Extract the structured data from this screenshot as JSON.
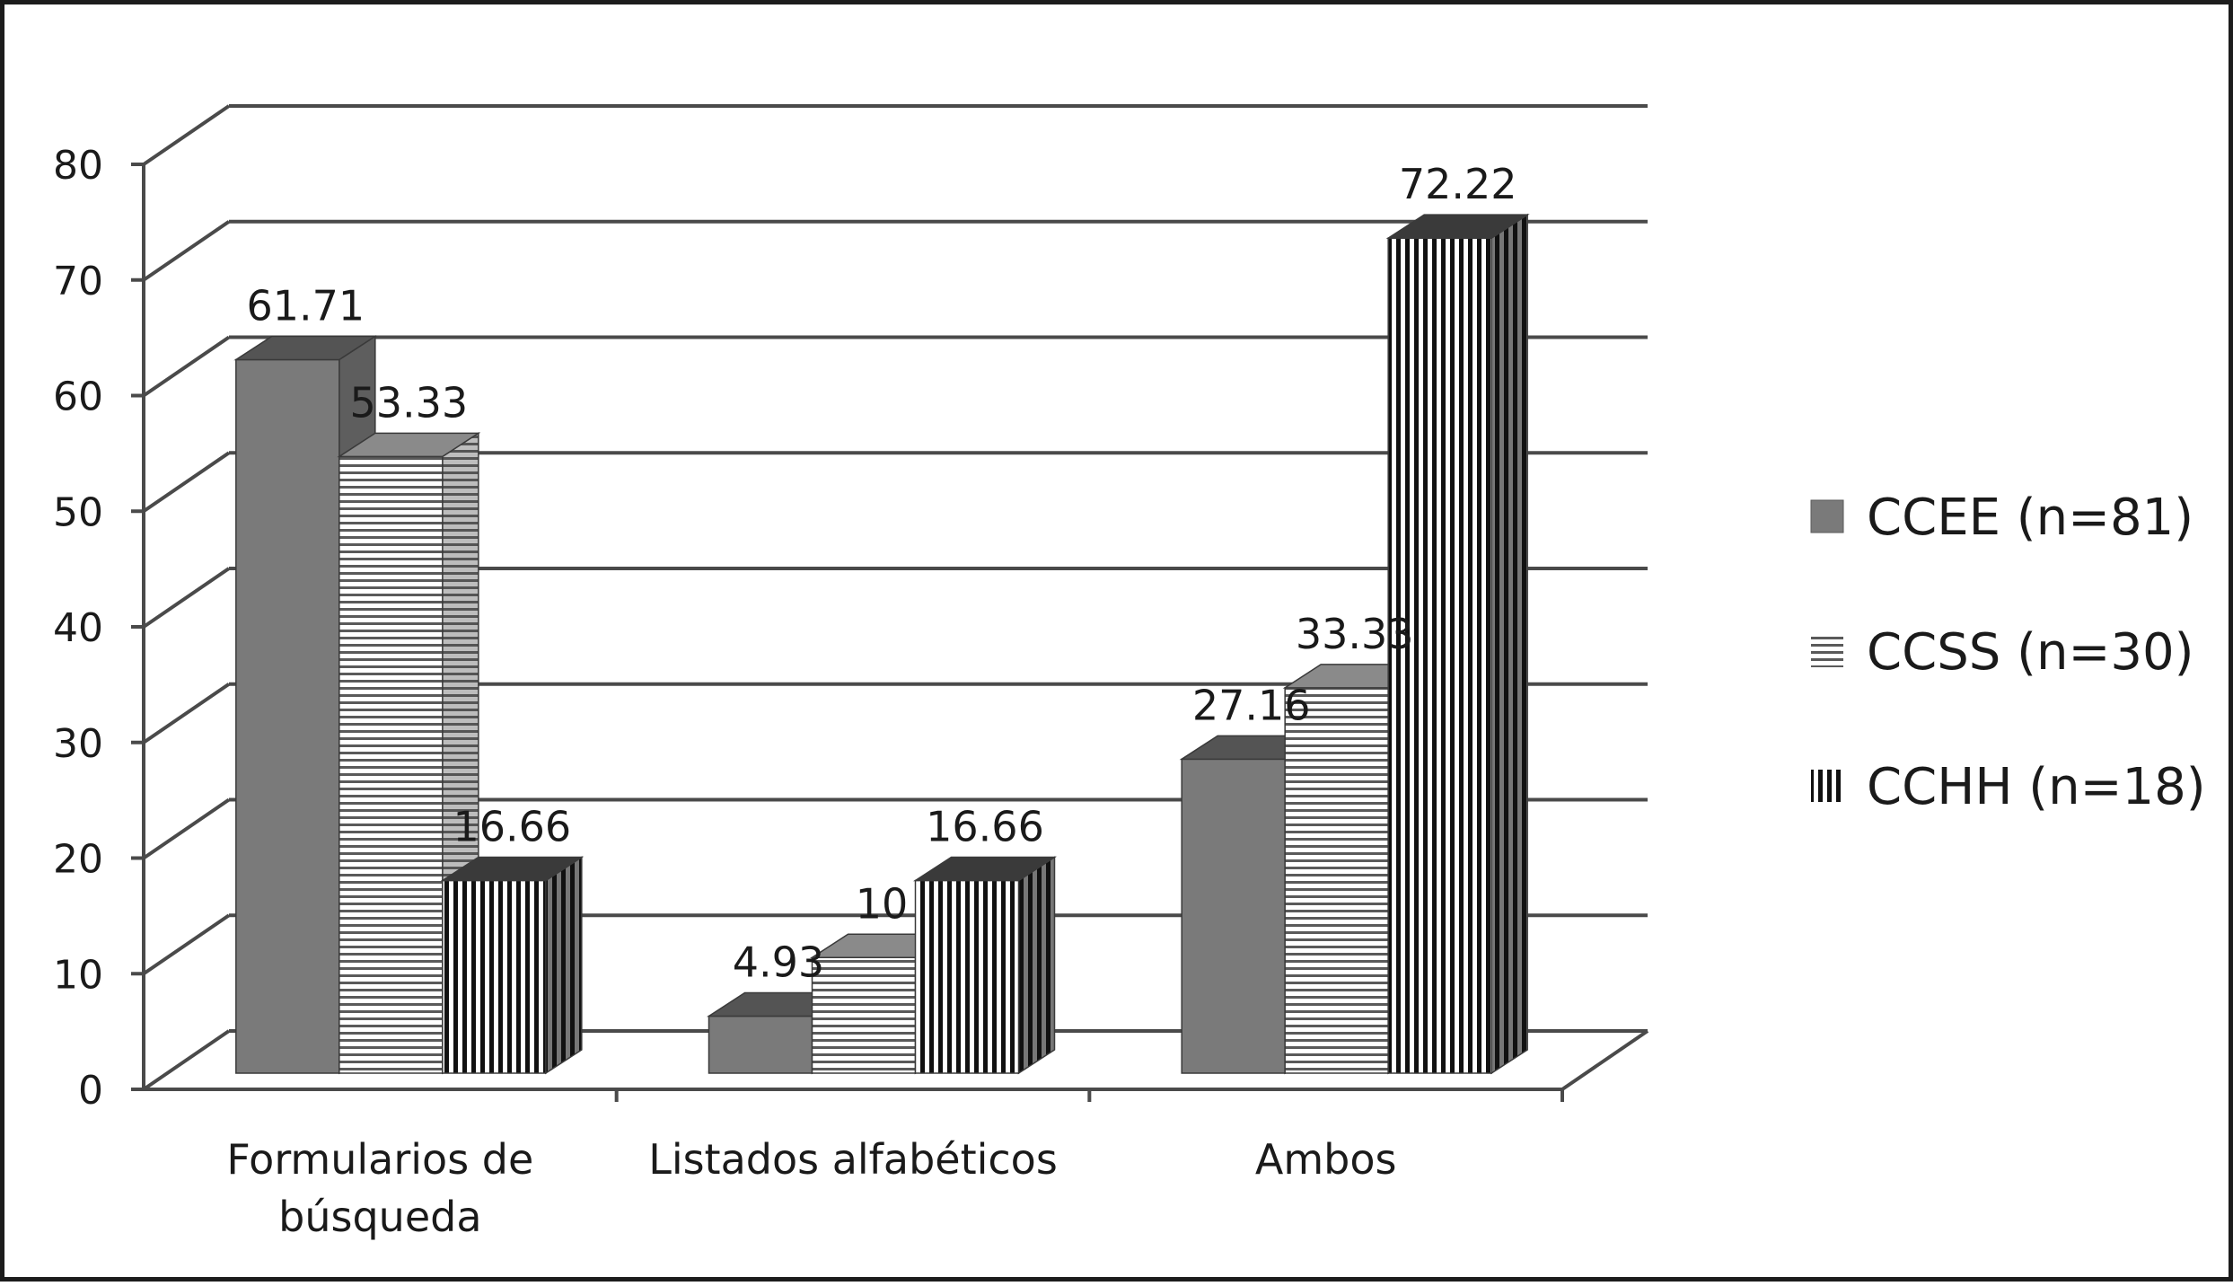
{
  "chart_data": {
    "type": "bar",
    "title": "",
    "xlabel": "",
    "ylabel": "",
    "ylim": [
      0,
      80
    ],
    "yticks": [
      "0",
      "10",
      "20",
      "30",
      "40",
      "50",
      "60",
      "70",
      "80"
    ],
    "categories": [
      [
        "Formularios de",
        "búsqueda"
      ],
      [
        "Listados alfabéticos"
      ],
      [
        "Ambos"
      ]
    ],
    "series": [
      {
        "name": "CCEE (n=81)",
        "values": [
          61.71,
          4.93,
          27.16
        ],
        "labels": [
          "61.71",
          "4.93",
          "27.16"
        ],
        "pattern": "solid",
        "color": "#7a7a7a"
      },
      {
        "name": "CCSS (n=30)",
        "values": [
          53.33,
          10,
          33.33
        ],
        "labels": [
          "53.33",
          "10",
          "33.33"
        ],
        "pattern": "horizontal-lines",
        "color": "#8c8c8c"
      },
      {
        "name": "CCHH (n=18)",
        "values": [
          16.66,
          16.66,
          72.22
        ],
        "labels": [
          "16.66",
          "16.66",
          "72.22"
        ],
        "pattern": "vertical-lines",
        "color": "#1a1a1a"
      }
    ],
    "grid": true,
    "legend": "right",
    "style": "3d-clustered-column"
  }
}
